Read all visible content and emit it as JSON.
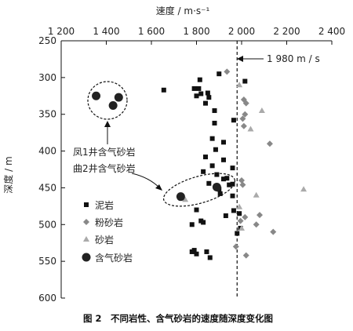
{
  "chart_data": {
    "type": "scatter",
    "xlabel": "速度 / m·s⁻¹",
    "ylabel": "深度 / m",
    "xlim": [
      1200,
      2400
    ],
    "ylim": [
      250,
      600
    ],
    "x_ticks": [
      1200,
      1400,
      1600,
      1800,
      2000,
      2200,
      2400
    ],
    "x_tick_labels": [
      "1 200",
      "1 400",
      "1 600",
      "1 800",
      "2 000",
      "2 200",
      "2 400"
    ],
    "y_ticks": [
      250,
      300,
      350,
      400,
      450,
      500,
      550,
      600
    ],
    "y_tick_labels": [
      "250",
      "300",
      "350",
      "400",
      "450",
      "500",
      "550",
      "600"
    ],
    "x_axis_position": "top",
    "y_inverted": true,
    "grid": false,
    "legend_position": "bottom-left",
    "reference_line": {
      "x": 1980,
      "label": "1 980 m / s"
    },
    "annotations": [
      "凤1井含气砂岩",
      "曲2井含气砂岩"
    ],
    "caption": "图 2　不同岩性、含气砂岩的速度随深度变化图",
    "series": [
      {
        "name": "泥岩",
        "marker": "square",
        "color": "#111111",
        "points": [
          [
            1900,
            295
          ],
          [
            2015,
            305
          ],
          [
            1815,
            303
          ],
          [
            1790,
            315
          ],
          [
            1810,
            315
          ],
          [
            1655,
            317
          ],
          [
            1850,
            321
          ],
          [
            1800,
            325
          ],
          [
            1820,
            322
          ],
          [
            1855,
            327
          ],
          [
            1840,
            335
          ],
          [
            1880,
            345
          ],
          [
            1965,
            358
          ],
          [
            1880,
            362
          ],
          [
            1870,
            383
          ],
          [
            1920,
            388
          ],
          [
            1885,
            398
          ],
          [
            1840,
            408
          ],
          [
            1920,
            412
          ],
          [
            1870,
            420
          ],
          [
            1960,
            423
          ],
          [
            1830,
            428
          ],
          [
            1890,
            432
          ],
          [
            1935,
            437
          ],
          [
            1920,
            438
          ],
          [
            1855,
            444
          ],
          [
            1945,
            446
          ],
          [
            1960,
            445
          ],
          [
            1885,
            448
          ],
          [
            1900,
            452
          ],
          [
            1905,
            458
          ],
          [
            1960,
            461
          ],
          [
            1965,
            481
          ],
          [
            1800,
            480
          ],
          [
            1990,
            485
          ],
          [
            1930,
            488
          ],
          [
            1820,
            495
          ],
          [
            1830,
            497
          ],
          [
            1780,
            500
          ],
          [
            1995,
            505
          ],
          [
            1980,
            512
          ],
          [
            1790,
            535
          ],
          [
            1780,
            537
          ],
          [
            1800,
            540
          ],
          [
            1845,
            537
          ],
          [
            1860,
            545
          ]
        ]
      },
      {
        "name": "粉砂岩",
        "marker": "diamond",
        "color": "#888888",
        "points": [
          [
            1935,
            292
          ],
          [
            2010,
            330
          ],
          [
            2020,
            335
          ],
          [
            2015,
            350
          ],
          [
            2005,
            356
          ],
          [
            2010,
            366
          ],
          [
            2125,
            390
          ],
          [
            2000,
            440
          ],
          [
            2005,
            446
          ],
          [
            2015,
            490
          ],
          [
            2080,
            487
          ],
          [
            1995,
            495
          ],
          [
            2065,
            500
          ],
          [
            2140,
            510
          ],
          [
            1975,
            530
          ],
          [
            2020,
            542
          ]
        ]
      },
      {
        "name": "砂岩",
        "marker": "triangle",
        "color": "#aaaaaa",
        "points": [
          [
            1990,
            310
          ],
          [
            2090,
            345
          ],
          [
            2040,
            370
          ],
          [
            2275,
            452
          ],
          [
            2065,
            460
          ],
          [
            1750,
            466
          ],
          [
            1990,
            476
          ],
          [
            2000,
            505
          ]
        ]
      },
      {
        "name": "含气砂岩",
        "marker": "circle",
        "color": "#222222",
        "points": [
          [
            1355,
            325
          ],
          [
            1455,
            327
          ],
          [
            1430,
            338
          ],
          [
            1730,
            462
          ],
          [
            1890,
            449
          ]
        ]
      }
    ]
  }
}
